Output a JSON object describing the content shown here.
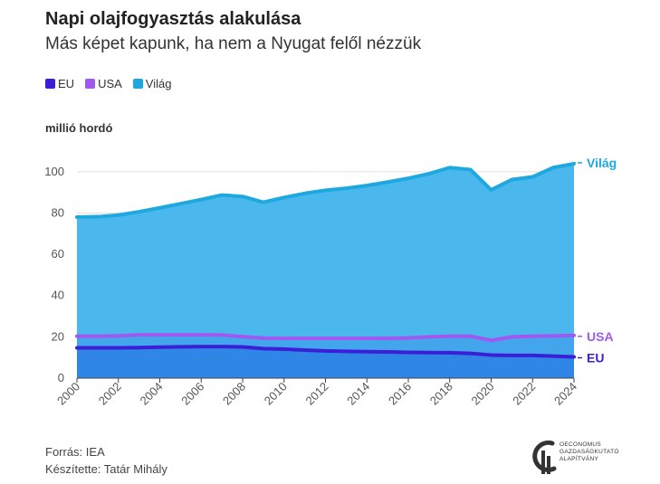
{
  "title": "Napi olajfogyasztás alakulása",
  "subtitle": "Más képet kapunk, ha nem a Nyugat felől nézzük",
  "unit_label": "millió hordó",
  "source": "Forrás: IEA",
  "author": "Készítette: Tatár Mihály",
  "logo": {
    "lines": [
      "OECONOMUS",
      "GAZDASÁGKUTATÓ",
      "ALAPÍTVÁNY"
    ]
  },
  "colors": {
    "eu": "#3b1fd6",
    "eu_fill": "#2f86e6",
    "usa": "#a158f0",
    "usa_fill": "#43a6ec",
    "vilag": "#1ea8e0",
    "vilag_fill": "#4ab8ed",
    "grid": "#e2e2e2",
    "axis_text": "#555555"
  },
  "chart_data": {
    "type": "area",
    "x": [
      2000,
      2001,
      2002,
      2003,
      2004,
      2005,
      2006,
      2007,
      2008,
      2009,
      2010,
      2011,
      2012,
      2013,
      2014,
      2015,
      2016,
      2017,
      2018,
      2019,
      2020,
      2021,
      2022,
      2023,
      2024
    ],
    "x_ticks": [
      2000,
      2002,
      2004,
      2006,
      2008,
      2010,
      2012,
      2014,
      2016,
      2018,
      2020,
      2022,
      2024
    ],
    "y_ticks": [
      0,
      20,
      40,
      60,
      80,
      100
    ],
    "ylim": [
      0,
      110
    ],
    "grid": true,
    "legend_position": "top-left",
    "series": [
      {
        "name": "EU",
        "key": "eu",
        "end_label": "EU",
        "values": [
          14.7,
          14.7,
          14.7,
          14.8,
          15.0,
          15.2,
          15.3,
          15.3,
          15.1,
          14.3,
          14.1,
          13.6,
          13.2,
          13.0,
          12.8,
          12.7,
          12.5,
          12.4,
          12.3,
          12.0,
          11.2,
          11.0,
          11.0,
          10.7,
          10.3
        ]
      },
      {
        "name": "USA",
        "key": "usa",
        "end_label": "USA",
        "values": [
          20.3,
          20.3,
          20.5,
          21.0,
          21.0,
          21.0,
          21.0,
          20.9,
          20.1,
          19.4,
          19.3,
          19.3,
          19.3,
          19.3,
          19.3,
          19.3,
          19.5,
          20.0,
          20.3,
          20.3,
          18.3,
          20.0,
          20.3,
          20.5,
          20.7
        ]
      },
      {
        "name": "Világ",
        "key": "vilag",
        "end_label": "Világ",
        "values": [
          78.0,
          78.2,
          79.0,
          80.6,
          82.5,
          84.5,
          86.5,
          88.7,
          88.0,
          85.2,
          87.5,
          89.5,
          91.0,
          92.0,
          93.3,
          95.0,
          96.8,
          99.0,
          102.0,
          101.0,
          91.2,
          96.2,
          97.5,
          102.0,
          103.9
        ]
      }
    ]
  }
}
